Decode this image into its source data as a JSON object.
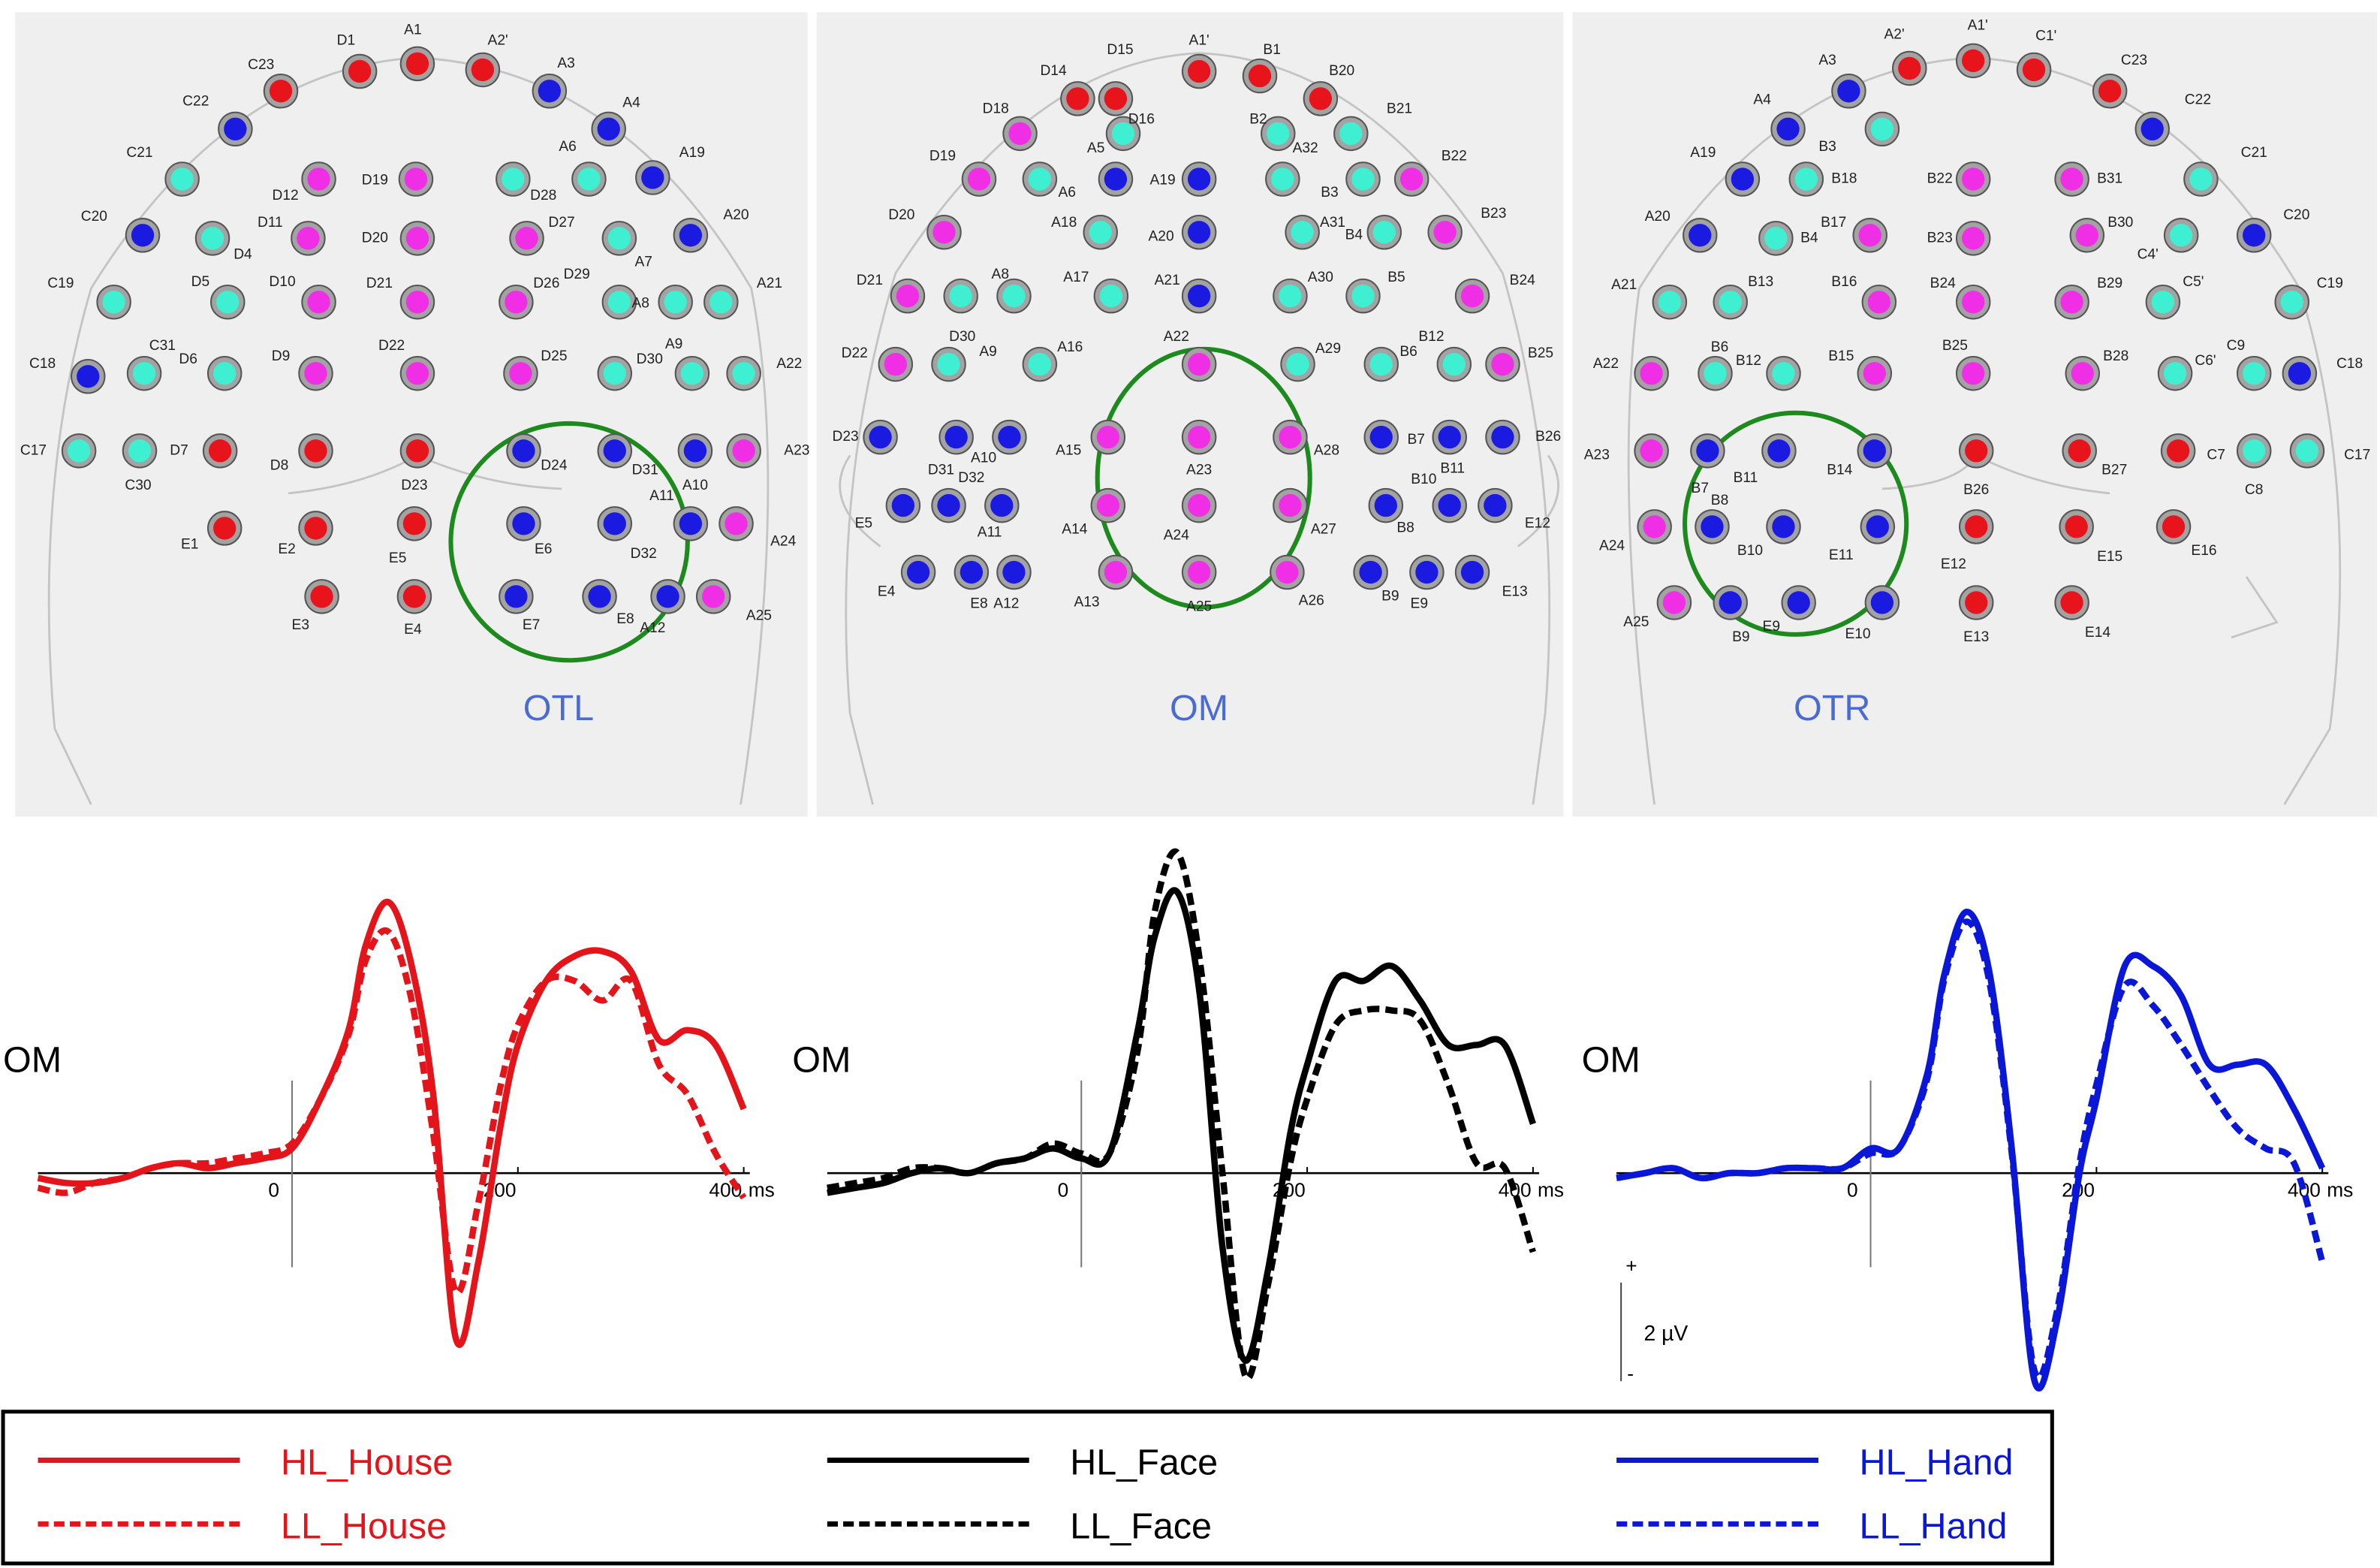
{
  "electrode_palette": {
    "r": "#e8141c",
    "b": "#1a1ae0",
    "c": "#3fefd2",
    "m": "#f02ee6"
  },
  "electrode_maps": [
    {
      "label": "OTL",
      "electrodes": [
        "C23",
        "D1",
        "A1",
        "A2'",
        "A3",
        "C22",
        "A4",
        "C21",
        "A6",
        "A19",
        "D12",
        "D19",
        "D28",
        "C20",
        "D11",
        "D4",
        "D20",
        "D27",
        "A7",
        "A20",
        "C19",
        "D5",
        "D10",
        "D21",
        "D26",
        "D29",
        "A8",
        "A21",
        "C18",
        "C31",
        "D6",
        "D9",
        "D22",
        "D25",
        "D30",
        "A9",
        "A22",
        "C17",
        "C30",
        "D7",
        "D8",
        "D23",
        "D24",
        "D31",
        "A10",
        "A23",
        "E1",
        "E2",
        "E5",
        "E6",
        "D32",
        "A11",
        "A24",
        "E3",
        "E4",
        "E7",
        "E8",
        "A12",
        "A25"
      ],
      "colors": [
        "r",
        "r",
        "r",
        "r",
        "b",
        "b",
        "b",
        "c",
        "c",
        "b",
        "m",
        "m",
        "c",
        "b",
        "m",
        "c",
        "m",
        "m",
        "c",
        "b",
        "c",
        "c",
        "m",
        "m",
        "m",
        "c",
        "c",
        "c",
        "b",
        "c",
        "c",
        "m",
        "m",
        "m",
        "c",
        "c",
        "c",
        "c",
        "c",
        "r",
        "r",
        "r",
        "b",
        "b",
        "b",
        "m",
        "r",
        "r",
        "r",
        "b",
        "b",
        "b",
        "m",
        "r",
        "r",
        "b",
        "b",
        "b",
        "m"
      ]
    },
    {
      "label": "OM",
      "electrodes": [
        "D14",
        "D15",
        "A1'",
        "B1",
        "B20",
        "D18",
        "D16",
        "B2",
        "B21",
        "D19",
        "A5",
        "A19",
        "A32",
        "B22",
        "D20",
        "A6",
        "A18",
        "A20",
        "A31",
        "B3",
        "B4",
        "B23",
        "D21",
        "A8",
        "A17",
        "A21",
        "A30",
        "B5",
        "B24",
        "D30",
        "D22",
        "A9",
        "A16",
        "A22",
        "A29",
        "B6",
        "B12",
        "B25",
        "D23",
        "D31",
        "A10",
        "A15",
        "A23",
        "A28",
        "B7",
        "B11",
        "B26",
        "E5",
        "D32",
        "A11",
        "A14",
        "A24",
        "A27",
        "B10",
        "B8",
        "E12",
        "E4",
        "E8",
        "A12",
        "A13",
        "A25",
        "A26",
        "B9",
        "E9",
        "E13"
      ],
      "colors": [
        "r",
        "r",
        "r",
        "r",
        "r",
        "m",
        "c",
        "c",
        "c",
        "m",
        "b",
        "b",
        "c",
        "m",
        "m",
        "c",
        "c",
        "b",
        "c",
        "c",
        "c",
        "m",
        "m",
        "c",
        "c",
        "b",
        "c",
        "c",
        "m",
        "c",
        "m",
        "c",
        "c",
        "m",
        "c",
        "c",
        "c",
        "m",
        "b",
        "b",
        "b",
        "m",
        "m",
        "m",
        "b",
        "b",
        "b",
        "b",
        "b",
        "b",
        "m",
        "m",
        "m",
        "b",
        "b",
        "b",
        "b",
        "b",
        "b",
        "m",
        "m",
        "m",
        "b",
        "b",
        "b"
      ]
    },
    {
      "label": "OTR",
      "electrodes": [
        "A3",
        "A2'",
        "A1'",
        "C1'",
        "C23",
        "A4",
        "C22",
        "B3",
        "A19",
        "B18",
        "B22",
        "B31",
        "C21",
        "A20",
        "B4",
        "B17",
        "B23",
        "B30",
        "C4'",
        "C20",
        "A21",
        "B13",
        "B16",
        "B24",
        "B29",
        "C5'",
        "C19",
        "A22",
        "B6",
        "B12",
        "B15",
        "B25",
        "B28",
        "C6'",
        "C9",
        "C18",
        "A23",
        "B7",
        "B11",
        "B14",
        "B26",
        "B27",
        "C7",
        "C8",
        "C17",
        "A24",
        "B8",
        "B10",
        "E11",
        "E12",
        "E15",
        "E16",
        "A25",
        "B9",
        "E9",
        "E10",
        "E13",
        "E14"
      ],
      "colors": [
        "b",
        "r",
        "r",
        "r",
        "r",
        "b",
        "b",
        "c",
        "b",
        "c",
        "m",
        "m",
        "c",
        "b",
        "c",
        "m",
        "m",
        "m",
        "c",
        "b",
        "c",
        "c",
        "m",
        "m",
        "m",
        "c",
        "c",
        "m",
        "c",
        "c",
        "m",
        "m",
        "m",
        "c",
        "c",
        "b",
        "m",
        "b",
        "b",
        "b",
        "r",
        "r",
        "r",
        "c",
        "c",
        "m",
        "b",
        "b",
        "b",
        "r",
        "r",
        "r",
        "m",
        "b",
        "b",
        "b",
        "r",
        "r"
      ]
    }
  ],
  "chart_data": [
    {
      "type": "line",
      "title": "OM",
      "x_unit": "ms",
      "x": [
        -225,
        -200,
        -175,
        -150,
        -125,
        -100,
        -75,
        -50,
        -25,
        0,
        25,
        50,
        65,
        85,
        105,
        125,
        145,
        165,
        185,
        200,
        225,
        250,
        275,
        300,
        325,
        350,
        375,
        400
      ],
      "xlim": [
        -225,
        400
      ],
      "xticks": [
        0,
        200,
        400
      ],
      "ylim": [
        -4.5,
        6.8
      ],
      "series": [
        {
          "name": "HL_House",
          "color": "#e3151b",
          "dashed": false,
          "values": [
            -0.1,
            -0.2,
            -0.2,
            -0.1,
            0.1,
            0.2,
            0.1,
            0.2,
            0.3,
            0.5,
            1.5,
            2.9,
            4.6,
            5.5,
            4.3,
            1.6,
            -3.35,
            -1.8,
            1.0,
            2.6,
            3.9,
            4.4,
            4.5,
            4.1,
            2.7,
            2.9,
            2.6,
            1.3
          ]
        },
        {
          "name": "LL_House",
          "color": "#e3151b",
          "dashed": true,
          "values": [
            -0.3,
            -0.4,
            -0.2,
            -0.1,
            0.1,
            0.2,
            0.2,
            0.3,
            0.4,
            0.6,
            1.5,
            2.8,
            4.3,
            4.9,
            3.6,
            0.8,
            -2.4,
            -0.6,
            1.8,
            3.0,
            3.9,
            3.9,
            3.5,
            3.9,
            2.2,
            1.6,
            0.4,
            -0.5
          ]
        }
      ]
    },
    {
      "type": "line",
      "title": "OM",
      "x_unit": "ms",
      "x": [
        -225,
        -200,
        -175,
        -150,
        -125,
        -100,
        -75,
        -50,
        -25,
        0,
        25,
        50,
        65,
        85,
        105,
        125,
        145,
        165,
        185,
        200,
        225,
        250,
        275,
        300,
        325,
        350,
        375,
        400
      ],
      "xlim": [
        -225,
        400
      ],
      "xticks": [
        0,
        200,
        400
      ],
      "ylim": [
        -4.5,
        6.8
      ],
      "series": [
        {
          "name": "HL_Face",
          "color": "#000000",
          "dashed": false,
          "values": [
            -0.4,
            -0.3,
            -0.2,
            0,
            0.1,
            0,
            0.2,
            0.3,
            0.5,
            0.3,
            0.4,
            2.9,
            4.8,
            5.7,
            3.6,
            -1.5,
            -3.8,
            -2.0,
            0.8,
            2.2,
            3.9,
            3.9,
            4.2,
            3.5,
            2.6,
            2.6,
            2.6,
            1.0
          ]
        },
        {
          "name": "LL_Face",
          "color": "#000000",
          "dashed": true,
          "values": [
            -0.3,
            -0.2,
            -0.1,
            0.1,
            0.1,
            0,
            0.2,
            0.3,
            0.6,
            0.4,
            0.4,
            2.5,
            5.3,
            6.5,
            4.3,
            0,
            -4.1,
            -2.3,
            0.2,
            1.5,
            3.0,
            3.3,
            3.3,
            3.1,
            1.8,
            0.2,
            0.1,
            -1.6
          ]
        }
      ]
    },
    {
      "type": "line",
      "title": "OM",
      "x_unit": "ms",
      "x": [
        -225,
        -200,
        -175,
        -150,
        -125,
        -100,
        -75,
        -50,
        -25,
        0,
        25,
        50,
        65,
        85,
        105,
        125,
        145,
        165,
        185,
        200,
        225,
        250,
        275,
        300,
        325,
        350,
        375,
        400
      ],
      "xlim": [
        -225,
        400
      ],
      "xticks": [
        0,
        200,
        400
      ],
      "ylim": [
        -4.5,
        6.8
      ],
      "scale_bar": {
        "value": 2,
        "label": "2 µV"
      },
      "scale_plus": "+",
      "scale_minus": "-",
      "series": [
        {
          "name": "HL_Hand",
          "color": "#0b17d6",
          "dashed": false,
          "values": [
            -0.1,
            0,
            0.1,
            -0.1,
            0,
            0,
            0.1,
            0.1,
            0.1,
            0.5,
            0.5,
            2.0,
            4.0,
            5.3,
            4.1,
            0.5,
            -4.2,
            -3.0,
            0,
            1.5,
            4.2,
            4.2,
            3.6,
            2.2,
            2.2,
            2.2,
            1.3,
            0.1
          ]
        },
        {
          "name": "LL_Hand",
          "color": "#0b17d6",
          "dashed": true,
          "values": [
            -0.1,
            0,
            0.1,
            -0.1,
            0,
            0,
            0.1,
            0.1,
            0.1,
            0.4,
            0.5,
            1.9,
            3.9,
            5.1,
            3.9,
            0.4,
            -4.0,
            -2.8,
            0.2,
            1.8,
            3.8,
            3.4,
            2.6,
            1.7,
            0.9,
            0.5,
            0.2,
            -1.8
          ]
        }
      ]
    }
  ]
}
